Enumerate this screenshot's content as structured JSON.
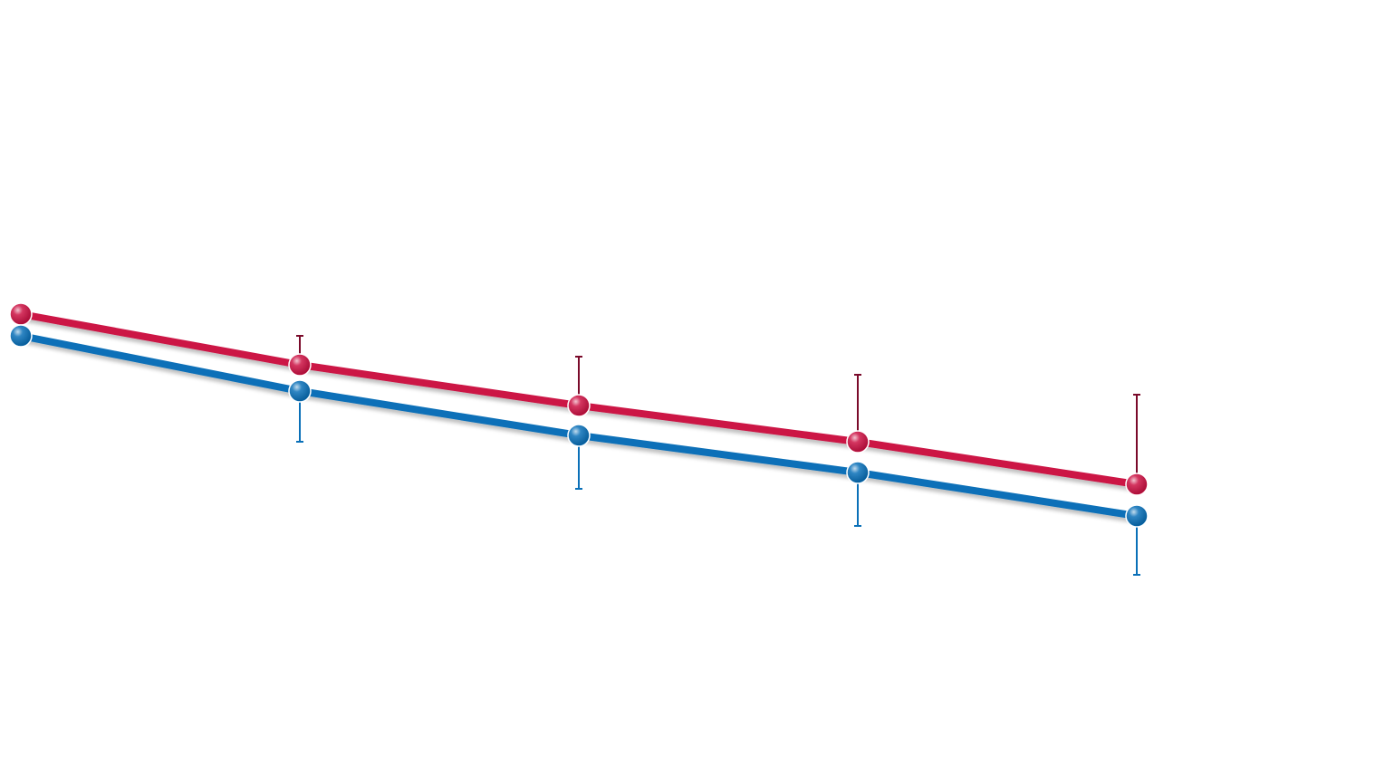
{
  "chart_data": {
    "type": "line",
    "title": "",
    "xlabel": "",
    "ylabel": "",
    "grid": false,
    "legend": "none",
    "x": [
      0,
      1,
      2,
      3,
      4
    ],
    "ylim": [
      0,
      844
    ],
    "series": [
      {
        "color": "#cc1244",
        "errorbar_color": "#7a0a2a",
        "values": [
          497,
          441,
          396,
          356,
          309
        ],
        "error_plus": [
          null,
          32,
          54,
          74,
          99
        ],
        "error_minus": [
          null,
          0,
          0,
          0,
          0
        ]
      },
      {
        "color": "#0a70b8",
        "errorbar_color": "#0a70b8",
        "values": [
          473,
          412,
          363,
          322,
          274
        ],
        "error_plus": [
          null,
          0,
          0,
          0,
          0
        ],
        "error_minus": [
          null,
          56,
          59,
          59,
          65
        ]
      }
    ]
  }
}
